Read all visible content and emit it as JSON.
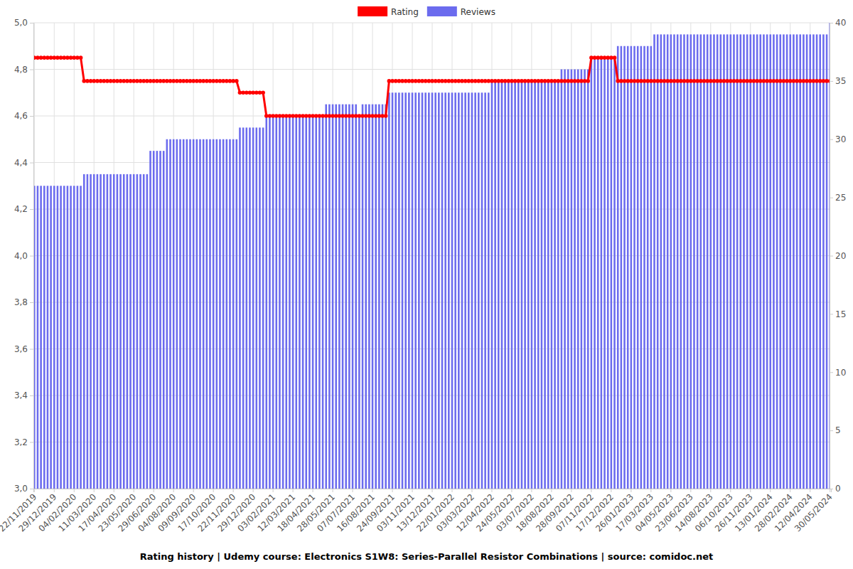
{
  "chart_data": {
    "type": "bar",
    "title": "Rating history | Udemy course: Electronics S1W8: Series-Parallel Resistor Combinations | source: comidoc.net",
    "categories": [
      "22/11/2019",
      null,
      null,
      null,
      null,
      null,
      "29/12/2019",
      null,
      null,
      null,
      null,
      null,
      "04/02/2020",
      null,
      null,
      null,
      null,
      null,
      "11/03/2020",
      null,
      null,
      null,
      null,
      null,
      "17/04/2020",
      null,
      null,
      null,
      null,
      null,
      "23/05/2020",
      null,
      null,
      null,
      null,
      null,
      "29/06/2020",
      null,
      null,
      null,
      null,
      null,
      "04/08/2020",
      null,
      null,
      null,
      null,
      null,
      "09/09/2020",
      null,
      null,
      null,
      null,
      null,
      "17/10/2020",
      null,
      null,
      null,
      null,
      null,
      "22/11/2020",
      null,
      null,
      null,
      null,
      null,
      "29/12/2020",
      null,
      null,
      null,
      null,
      null,
      "03/02/2021",
      null,
      null,
      null,
      null,
      null,
      "12/03/2021",
      null,
      null,
      null,
      null,
      null,
      "18/04/2021",
      null,
      null,
      null,
      null,
      null,
      "28/05/2021",
      null,
      null,
      null,
      null,
      null,
      "07/07/2021",
      null,
      null,
      null,
      null,
      null,
      "16/08/2021",
      null,
      null,
      null,
      null,
      null,
      "24/09/2021",
      null,
      null,
      null,
      null,
      null,
      "03/11/2021",
      null,
      null,
      null,
      null,
      null,
      "13/12/2021",
      null,
      null,
      null,
      null,
      null,
      "22/01/2022",
      null,
      null,
      null,
      null,
      null,
      "03/03/2022",
      null,
      null,
      null,
      null,
      null,
      "12/04/2022",
      null,
      null,
      null,
      null,
      null,
      "24/05/2022",
      null,
      null,
      null,
      null,
      null,
      "03/07/2022",
      null,
      null,
      null,
      null,
      null,
      "18/08/2022",
      null,
      null,
      null,
      null,
      null,
      "28/09/2022",
      null,
      null,
      null,
      null,
      null,
      "07/11/2022",
      null,
      null,
      null,
      null,
      null,
      "17/12/2022",
      null,
      null,
      null,
      null,
      null,
      "26/01/2023",
      null,
      null,
      null,
      null,
      null,
      "17/03/2023",
      null,
      null,
      null,
      null,
      null,
      "04/05/2023",
      null,
      null,
      null,
      null,
      null,
      "23/06/2023",
      null,
      null,
      null,
      null,
      null,
      "14/08/2023",
      null,
      null,
      null,
      null,
      null,
      "06/10/2023",
      null,
      null,
      null,
      null,
      null,
      "26/11/2023",
      null,
      null,
      null,
      null,
      null,
      "13/01/2024",
      null,
      null,
      null,
      null,
      null,
      "28/02/2024",
      null,
      null,
      null,
      null,
      null,
      "12/04/2024",
      null,
      null,
      null,
      null,
      null,
      "30/05/2024"
    ],
    "series": [
      {
        "name": "Rating",
        "type": "line",
        "color": "#ff0000",
        "marker": "circle",
        "line_style": "solid",
        "values": [
          4.85,
          4.85,
          4.85,
          4.85,
          4.85,
          4.85,
          4.85,
          4.85,
          4.85,
          4.85,
          4.85,
          4.85,
          4.85,
          4.85,
          4.85,
          4.75,
          4.75,
          4.75,
          4.75,
          4.75,
          4.75,
          4.75,
          4.75,
          4.75,
          4.75,
          4.75,
          4.75,
          4.75,
          4.75,
          4.75,
          4.75,
          4.75,
          4.75,
          4.75,
          4.75,
          4.75,
          4.75,
          4.75,
          4.75,
          4.75,
          4.75,
          4.75,
          4.75,
          4.75,
          4.75,
          4.75,
          4.75,
          4.75,
          4.75,
          4.75,
          4.75,
          4.75,
          4.75,
          4.75,
          4.75,
          4.75,
          4.75,
          4.75,
          4.75,
          4.75,
          4.75,
          4.75,
          4.7,
          4.7,
          4.7,
          4.7,
          4.7,
          4.7,
          4.7,
          4.7,
          4.6,
          4.6,
          4.6,
          4.6,
          4.6,
          4.6,
          4.6,
          4.6,
          4.6,
          4.6,
          4.6,
          4.6,
          4.6,
          4.6,
          4.6,
          4.6,
          4.6,
          4.6,
          4.6,
          4.6,
          4.6,
          4.6,
          4.6,
          4.6,
          4.6,
          4.6,
          4.6,
          4.6,
          4.6,
          4.6,
          4.6,
          4.6,
          4.6,
          4.6,
          4.6,
          4.6,
          4.6,
          4.75,
          4.75,
          4.75,
          4.75,
          4.75,
          4.75,
          4.75,
          4.75,
          4.75,
          4.75,
          4.75,
          4.75,
          4.75,
          4.75,
          4.75,
          4.75,
          4.75,
          4.75,
          4.75,
          4.75,
          4.75,
          4.75,
          4.75,
          4.75,
          4.75,
          4.75,
          4.75,
          4.75,
          4.75,
          4.75,
          4.75,
          4.75,
          4.75,
          4.75,
          4.75,
          4.75,
          4.75,
          4.75,
          4.75,
          4.75,
          4.75,
          4.75,
          4.75,
          4.75,
          4.75,
          4.75,
          4.75,
          4.75,
          4.75,
          4.75,
          4.75,
          4.75,
          4.75,
          4.75,
          4.75,
          4.75,
          4.75,
          4.75,
          4.75,
          4.75,
          4.75,
          4.85,
          4.85,
          4.85,
          4.85,
          4.85,
          4.85,
          4.85,
          4.85,
          4.75,
          4.75,
          4.75,
          4.75,
          4.75,
          4.75,
          4.75,
          4.75,
          4.75,
          4.75,
          4.75,
          4.75,
          4.75,
          4.75,
          4.75,
          4.75,
          4.75,
          4.75,
          4.75,
          4.75,
          4.75,
          4.75,
          4.75,
          4.75,
          4.75,
          4.75,
          4.75,
          4.75,
          4.75,
          4.75,
          4.75,
          4.75,
          4.75,
          4.75,
          4.75,
          4.75,
          4.75,
          4.75,
          4.75,
          4.75,
          4.75,
          4.75,
          4.75,
          4.75,
          4.75,
          4.75,
          4.75,
          4.75,
          4.75,
          4.75,
          4.75,
          4.75,
          4.75,
          4.75,
          4.75,
          4.75,
          4.75,
          4.75,
          4.75,
          4.75,
          4.75,
          4.75,
          4.75,
          4.75,
          4.75
        ]
      },
      {
        "name": "Reviews",
        "type": "bar",
        "color": "#6b6bee",
        "axis": "y2",
        "values": [
          26,
          26,
          26,
          26,
          26,
          26,
          26,
          26,
          26,
          26,
          26,
          26,
          26,
          26,
          26,
          27,
          27,
          27,
          27,
          27,
          27,
          27,
          27,
          27,
          27,
          27,
          27,
          27,
          27,
          27,
          27,
          27,
          27,
          27,
          27,
          29,
          29,
          29,
          29,
          29,
          30,
          30,
          30,
          30,
          30,
          30,
          30,
          30,
          30,
          30,
          30,
          30,
          30,
          30,
          30,
          30,
          30,
          30,
          30,
          30,
          30,
          30,
          31,
          31,
          31,
          31,
          31,
          31,
          31,
          31,
          32,
          32,
          32,
          32,
          32,
          32,
          32,
          32,
          32,
          32,
          32,
          32,
          32,
          32,
          32,
          32,
          32,
          32,
          33,
          33,
          33,
          33,
          33,
          33,
          33,
          33,
          33,
          33,
          32,
          33,
          33,
          33,
          33,
          33,
          33,
          33,
          33,
          34,
          34,
          34,
          34,
          34,
          34,
          34,
          34,
          34,
          34,
          34,
          34,
          34,
          34,
          34,
          34,
          34,
          34,
          34,
          34,
          34,
          34,
          34,
          34,
          34,
          34,
          34,
          34,
          34,
          34,
          34,
          35,
          35,
          35,
          35,
          35,
          35,
          35,
          35,
          35,
          35,
          35,
          35,
          35,
          35,
          35,
          35,
          35,
          35,
          35,
          35,
          35,
          36,
          36,
          36,
          36,
          36,
          36,
          36,
          36,
          36,
          37,
          37,
          37,
          37,
          37,
          37,
          37,
          37,
          38,
          38,
          38,
          38,
          38,
          38,
          38,
          38,
          38,
          38,
          38,
          39,
          39,
          39,
          39,
          39,
          39,
          39,
          39,
          39,
          39,
          39,
          39,
          39,
          39,
          39,
          39,
          39,
          39,
          39,
          39,
          39,
          39,
          39,
          39,
          39,
          39,
          39,
          39,
          39,
          39,
          39,
          39,
          39,
          39,
          39,
          39,
          39,
          39,
          39,
          39,
          39,
          39,
          39,
          39,
          39,
          39,
          39,
          39,
          39,
          39,
          39,
          39,
          39,
          40
        ]
      }
    ],
    "ylim": [
      3,
      5
    ],
    "yticks": [
      {
        "value": 3,
        "label": "3,0"
      },
      {
        "value": 3.2,
        "label": "3,2"
      },
      {
        "value": 3.4,
        "label": "3,4"
      },
      {
        "value": 3.6,
        "label": "3,6"
      },
      {
        "value": 3.8,
        "label": "3,8"
      },
      {
        "value": 4,
        "label": "4,0"
      },
      {
        "value": 4.2,
        "label": "4,2"
      },
      {
        "value": 4.4,
        "label": "4,4"
      },
      {
        "value": 4.6,
        "label": "4,6"
      },
      {
        "value": 4.8,
        "label": "4,8"
      },
      {
        "value": 5,
        "label": "5,0"
      }
    ],
    "y2lim": [
      0,
      40
    ],
    "y2ticks": [
      0,
      5,
      10,
      15,
      20,
      25,
      30,
      35,
      40
    ],
    "grid": true,
    "legend": "top"
  }
}
